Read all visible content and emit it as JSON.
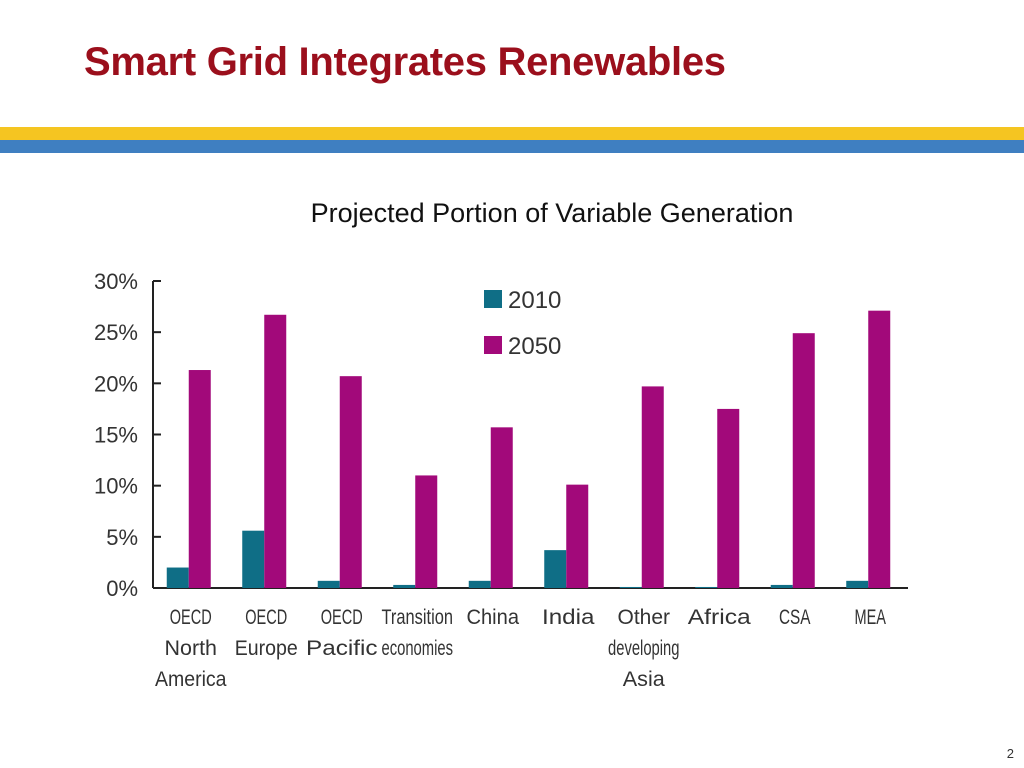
{
  "slide": {
    "title": "Smart Grid Integrates Renewables",
    "page_number": "2"
  },
  "colors": {
    "title": "#9b0f1c",
    "band_yellow": "#f5c521",
    "band_blue": "#3f7fc1",
    "series_2010": "#0f6e86",
    "series_2050": "#a2097a"
  },
  "chart_data": {
    "type": "bar",
    "title": "Projected Portion of Variable Generation",
    "xlabel": "",
    "ylabel": "",
    "ylim": [
      0,
      30
    ],
    "yticks": [
      0,
      5,
      10,
      15,
      20,
      25,
      30
    ],
    "ytick_labels": [
      "0%",
      "5%",
      "10%",
      "15%",
      "20%",
      "25%",
      "30%"
    ],
    "grid": false,
    "legend_position": "top-center",
    "categories": [
      [
        "OECD",
        "North",
        "America"
      ],
      [
        "OECD",
        "Europe"
      ],
      [
        "OECD",
        "Pacific"
      ],
      [
        "Transition",
        "economies"
      ],
      [
        "China"
      ],
      [
        "India"
      ],
      [
        "Other",
        "developing",
        "Asia"
      ],
      [
        "Africa"
      ],
      [
        "CSA"
      ],
      [
        "MEA"
      ]
    ],
    "series": [
      {
        "name": "2010",
        "color": "#0f6e86",
        "values": [
          2.0,
          5.6,
          0.7,
          0.3,
          0.7,
          3.7,
          0.1,
          0.1,
          0.3,
          0.7
        ]
      },
      {
        "name": "2050",
        "color": "#a2097a",
        "values": [
          21.3,
          26.7,
          20.7,
          11.0,
          15.7,
          10.1,
          19.7,
          17.5,
          24.9,
          27.1
        ]
      }
    ]
  }
}
